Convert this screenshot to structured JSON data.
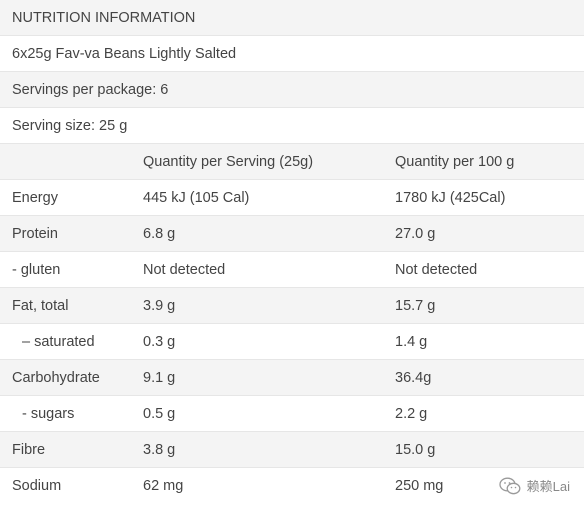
{
  "header": {
    "title": "NUTRITION INFORMATION",
    "product": "6x25g Fav-va Beans Lightly Salted",
    "servings": "Servings per package: 6",
    "serving_size": "Serving size: 25 g"
  },
  "table": {
    "columns": [
      "",
      "Quantity per Serving (25g)",
      "Quantity per 100 g"
    ],
    "rows": [
      {
        "label": "Energy",
        "per_serving": "445 kJ (105 Cal)",
        "per_100g": "1780 kJ (425Cal)"
      },
      {
        "label": "Protein",
        "per_serving": "6.8 g",
        "per_100g": "27.0 g"
      },
      {
        "label": "- gluten",
        "per_serving": "Not detected",
        "per_100g": "Not detected"
      },
      {
        "label": "Fat, total",
        "per_serving": "3.9 g",
        "per_100g": "15.7 g"
      },
      {
        "label": "– saturated",
        "per_serving": "0.3 g",
        "per_100g": "1.4 g"
      },
      {
        "label": "Carbohydrate",
        "per_serving": "9.1 g",
        "per_100g": "36.4g"
      },
      {
        "label": "- sugars",
        "per_serving": "0.5 g",
        "per_100g": "2.2 g"
      },
      {
        "label": "Fibre",
        "per_serving": "3.8 g",
        "per_100g": "15.0 g"
      },
      {
        "label": "Sodium",
        "per_serving": "62 mg",
        "per_100g": "250 mg"
      }
    ]
  },
  "watermark": {
    "icon": "wechat-icon",
    "text": "赖赖Lai"
  }
}
